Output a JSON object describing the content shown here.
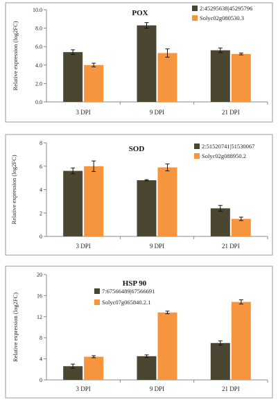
{
  "chart_data": [
    {
      "type": "bar",
      "title": "POX",
      "ylabel": "Relative expression (log2FC)",
      "categories": [
        "3 DPI",
        "9 DPI",
        "21 DPI"
      ],
      "ylim": [
        0,
        10
      ],
      "yticks": [
        "0.0",
        "2.0",
        "4.0",
        "6.0",
        "8.0",
        "10.0"
      ],
      "series": [
        {
          "name": "2:45295638|45295796",
          "color": "#4a4632",
          "values": [
            5.4,
            8.3,
            5.6
          ],
          "errors": [
            0.25,
            0.3,
            0.25
          ]
        },
        {
          "name": "Solyc02g080530.3",
          "color": "#f7953f",
          "values": [
            4.0,
            5.3,
            5.2
          ],
          "errors": [
            0.2,
            0.45,
            0.1
          ]
        }
      ],
      "legend": "top-right",
      "grid": false
    },
    {
      "type": "bar",
      "title": "SOD",
      "ylabel": "Relative expression (log2FC)",
      "categories": [
        "3 DPI",
        "9 DPI",
        "21 DPI"
      ],
      "ylim": [
        0,
        8
      ],
      "yticks": [
        "0",
        "2",
        "4",
        "6",
        "8"
      ],
      "series": [
        {
          "name": "2:51520741|51530067",
          "color": "#4a4632",
          "values": [
            5.6,
            4.8,
            2.4
          ],
          "errors": [
            0.25,
            0.05,
            0.25
          ]
        },
        {
          "name": "Solyc02g088950.2",
          "color": "#f7953f",
          "values": [
            6.0,
            5.9,
            1.5
          ],
          "errors": [
            0.45,
            0.3,
            0.15
          ]
        }
      ],
      "legend": "top-right",
      "grid": false
    },
    {
      "type": "bar",
      "title": "HSP 90",
      "ylabel": "Relative expression (log2FC)",
      "categories": [
        "3 DPI",
        "9 DPI",
        "21 DPI"
      ],
      "ylim": [
        0,
        20
      ],
      "yticks": [
        "0",
        "4",
        "8",
        "12",
        "16",
        "20"
      ],
      "series": [
        {
          "name": "7:67566489|67566691",
          "color": "#4a4632",
          "values": [
            2.6,
            4.5,
            7.0
          ],
          "errors": [
            0.4,
            0.25,
            0.4
          ]
        },
        {
          "name": "Solyc07g065840.2.1",
          "color": "#f7953f",
          "values": [
            4.4,
            12.8,
            14.8
          ],
          "errors": [
            0.2,
            0.25,
            0.4
          ]
        }
      ],
      "legend": "top-left",
      "grid": false
    }
  ]
}
